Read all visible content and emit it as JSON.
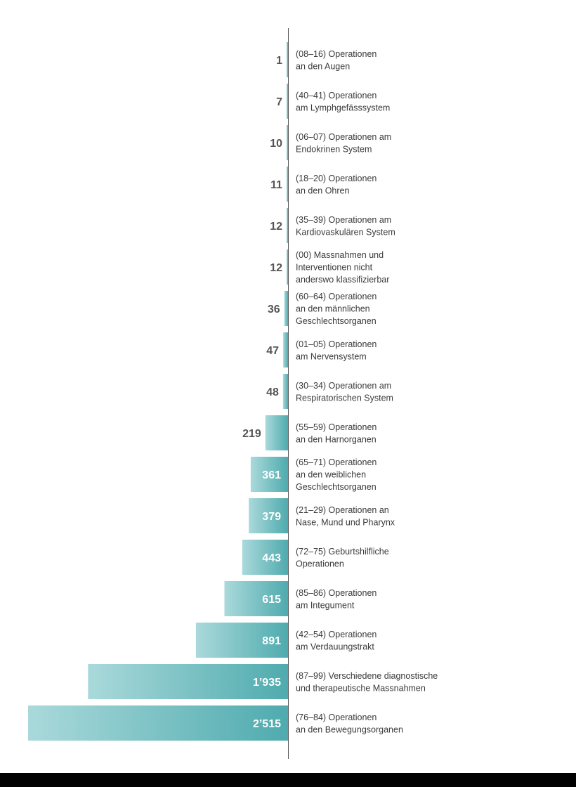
{
  "colors": {
    "bar_light": "#aad9db",
    "bar_dark": "#4fabae",
    "label_outside": "#555555",
    "label_inside": "#ffffff",
    "axis": "#555555",
    "footer": "#000000"
  },
  "chart_data": {
    "type": "bar",
    "orientation": "horizontal",
    "categories": [
      [
        "(08–16) Operationen",
        "an den Augen"
      ],
      [
        "(40–41)  Operationen",
        "am Lymphgefässsystem"
      ],
      [
        "(06–07) Operationen am",
        "Endokrinen System"
      ],
      [
        "(18–20) Operationen",
        "an den Ohren"
      ],
      [
        "(35–39) Operationen am",
        "Kardiovaskulären System"
      ],
      [
        "(00) Massnahmen und",
        "Interventionen nicht",
        "anderswo klassifizierbar"
      ],
      [
        "(60–64) Operationen",
        "an den männlichen",
        "Geschlechtsorganen"
      ],
      [
        "(01–05) Operationen",
        "am Nervensystem"
      ],
      [
        "(30–34) Operationen am",
        "Respiratorischen System"
      ],
      [
        "(55–59) Operationen",
        "an den Harnorganen"
      ],
      [
        "(65–71) Operationen",
        "an den weiblichen",
        "Geschlechtsorganen"
      ],
      [
        "(21–29) Operationen an",
        "Nase, Mund und Pharynx"
      ],
      [
        "(72–75) Geburtshilfliche",
        "Operationen"
      ],
      [
        "(85–86) Operationen",
        "am Integument"
      ],
      [
        "(42–54) Operationen",
        "am Verdauungstrakt"
      ],
      [
        "(87–99) Verschiedene diagnostische",
        "und therapeutische Massnahmen"
      ],
      [
        "(76–84) Operationen",
        "an den Bewegungsorganen"
      ]
    ],
    "values": [
      1,
      7,
      10,
      11,
      12,
      12,
      36,
      47,
      48,
      219,
      361,
      379,
      443,
      615,
      891,
      1935,
      2515
    ],
    "value_labels": [
      "1",
      "7",
      "10",
      "11",
      "12",
      "12",
      "36",
      "47",
      "48",
      "219",
      "361",
      "379",
      "443",
      "615",
      "891",
      "1’935",
      "2’515"
    ],
    "xlim": [
      0,
      2515
    ],
    "bar_direction": "leftward",
    "grid": false,
    "legend": "none"
  }
}
